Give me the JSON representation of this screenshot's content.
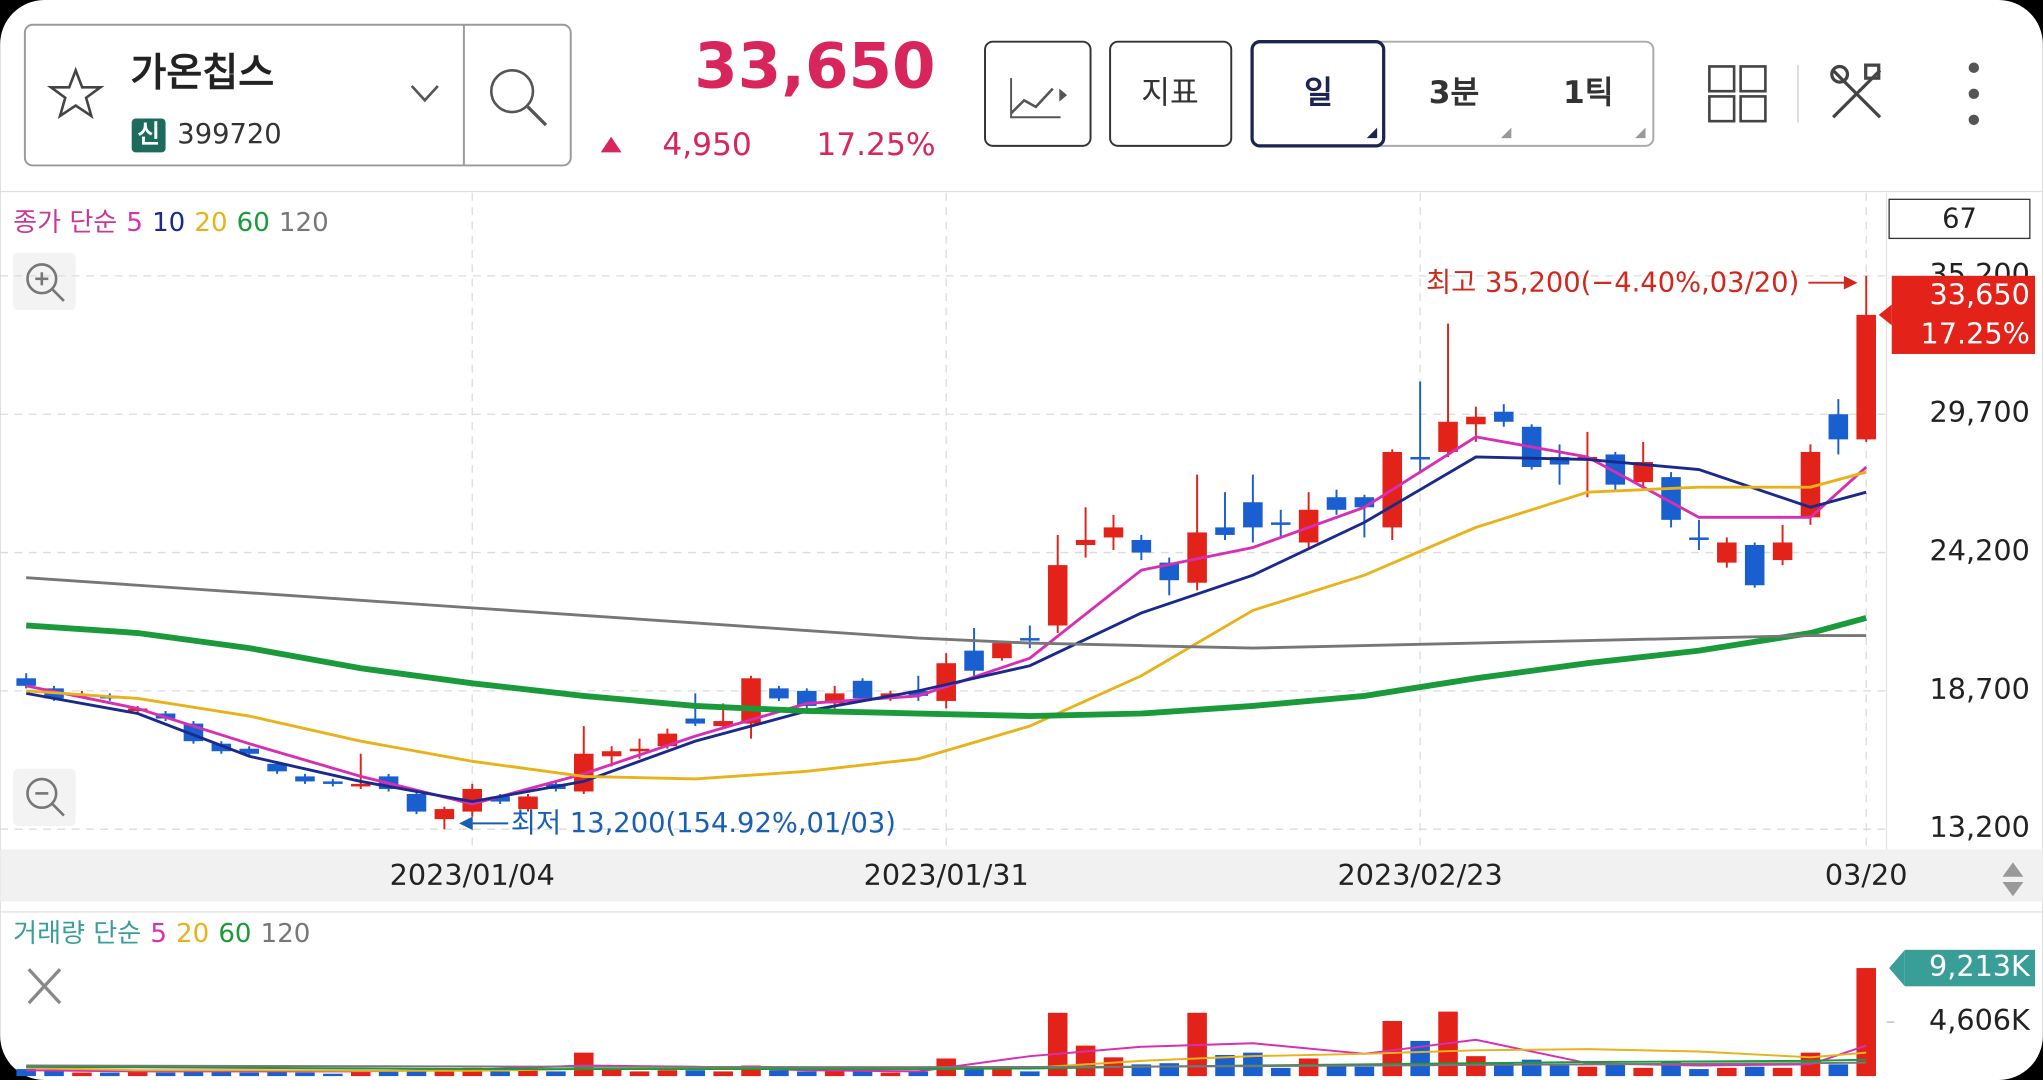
{
  "header": {
    "name": "가온칩스",
    "badge": "신",
    "code": "399720",
    "price": "33,650",
    "change": "4,950",
    "change_pct": "17.25%"
  },
  "toolbar": {
    "indicator": "지표",
    "periods": [
      "일",
      "3분",
      "1틱"
    ],
    "count": "67"
  },
  "chart_data": [
    {
      "type": "candlestick",
      "legend_title": "종가 단순",
      "categories": [
        null,
        null,
        null,
        null,
        null,
        null,
        null,
        null,
        null,
        null,
        null,
        null,
        null,
        null,
        null,
        null,
        "2023/01/04",
        null,
        null,
        null,
        null,
        null,
        null,
        null,
        null,
        null,
        null,
        null,
        null,
        null,
        null,
        null,
        null,
        "2023/01/31",
        null,
        null,
        null,
        null,
        null,
        null,
        null,
        null,
        null,
        null,
        null,
        null,
        null,
        null,
        null,
        null,
        "2023/02/23",
        null,
        null,
        null,
        null,
        null,
        null,
        null,
        null,
        null,
        null,
        null,
        null,
        null,
        null,
        null,
        "03/20"
      ],
      "open": [
        19200,
        18800,
        18500,
        18500,
        17900,
        17800,
        17400,
        16600,
        16400,
        15800,
        15300,
        15100,
        14900,
        15300,
        14600,
        13600,
        13900,
        14500,
        14000,
        15000,
        14700,
        16100,
        16300,
        16500,
        17600,
        17300,
        17400,
        18800,
        18700,
        18200,
        19100,
        18400,
        18700,
        18300,
        20300,
        20000,
        20800,
        21300,
        24500,
        24800,
        24700,
        23800,
        23000,
        25200,
        26200,
        25400,
        24600,
        26400,
        26400,
        25200,
        28000,
        28200,
        29300,
        29800,
        29200,
        28000,
        27900,
        28100,
        27000,
        27200,
        24800,
        23800,
        24500,
        23900,
        25600,
        29700,
        28700
      ],
      "high": [
        19400,
        18900,
        18700,
        18600,
        18100,
        17900,
        17500,
        16700,
        16500,
        15900,
        15400,
        15200,
        16200,
        15400,
        14700,
        14100,
        15000,
        14600,
        14600,
        15100,
        17300,
        16500,
        16800,
        17200,
        18600,
        18200,
        19300,
        18900,
        18800,
        18900,
        19200,
        18700,
        19300,
        20200,
        21200,
        20700,
        21300,
        24900,
        26000,
        25700,
        24900,
        24000,
        27300,
        26600,
        27300,
        25900,
        26600,
        26700,
        26500,
        28300,
        31000,
        33300,
        30000,
        30100,
        29300,
        28500,
        29000,
        28200,
        28600,
        27400,
        25500,
        24800,
        24600,
        25300,
        28500,
        30300,
        35200
      ],
      "low": [
        18800,
        18300,
        18400,
        18300,
        17800,
        17500,
        16600,
        16200,
        16100,
        15400,
        15000,
        14900,
        14800,
        14700,
        13800,
        13200,
        13700,
        14200,
        13900,
        14700,
        14600,
        15700,
        16000,
        16400,
        17300,
        17200,
        16800,
        18300,
        18000,
        18000,
        18300,
        18300,
        18300,
        18000,
        19300,
        19900,
        20400,
        21000,
        24000,
        24300,
        23900,
        22500,
        22700,
        24700,
        24600,
        24800,
        24400,
        25700,
        24800,
        24700,
        27400,
        28000,
        28600,
        29200,
        27500,
        26900,
        26400,
        26700,
        26700,
        25200,
        24300,
        23600,
        22800,
        23700,
        25300,
        28100,
        28600
      ],
      "close": [
        18900,
        18400,
        18550,
        18400,
        18000,
        17600,
        16700,
        16300,
        16200,
        15500,
        15100,
        15000,
        15000,
        14800,
        13900,
        14000,
        14800,
        14300,
        14500,
        14800,
        16200,
        16300,
        16400,
        17000,
        17400,
        17500,
        19200,
        18400,
        18100,
        18600,
        18400,
        18600,
        18500,
        19800,
        19500,
        20600,
        20700,
        23700,
        24700,
        25200,
        24200,
        23100,
        25000,
        24900,
        25200,
        25300,
        25900,
        25900,
        26000,
        28200,
        27900,
        29400,
        29600,
        29400,
        27600,
        27700,
        28000,
        26900,
        27800,
        25500,
        24700,
        24600,
        22900,
        24600,
        28200,
        28700,
        33650
      ],
      "up_color": "#e3221a",
      "down_color": "#1a5fd0",
      "ylim": [
        12500,
        38400
      ],
      "yticks": [
        {
          "value": 13200,
          "label": "13,200"
        },
        {
          "value": 18700,
          "label": "18,700"
        },
        {
          "value": 24200,
          "label": "24,200"
        },
        {
          "value": 29700,
          "label": "29,700"
        },
        {
          "value": 35200,
          "label": "35,200"
        }
      ],
      "grid": true,
      "moving_averages": [
        {
          "name": "5",
          "color": "#d62fb4",
          "x": [
            0,
            4,
            8,
            12,
            16,
            20,
            24,
            28,
            32,
            36,
            40,
            44,
            48,
            52,
            56,
            60,
            64,
            66
          ],
          "values": [
            18900,
            18000,
            16600,
            15300,
            14200,
            15400,
            16900,
            18200,
            18500,
            20000,
            23500,
            24400,
            26000,
            28800,
            28000,
            25600,
            25600,
            27600
          ]
        },
        {
          "name": "10",
          "color": "#1a2a8c",
          "x": [
            0,
            4,
            8,
            12,
            16,
            20,
            24,
            28,
            32,
            36,
            40,
            44,
            48,
            52,
            56,
            60,
            64,
            66
          ],
          "values": [
            18600,
            17800,
            16100,
            15100,
            14300,
            15100,
            16700,
            17900,
            18700,
            19700,
            21800,
            23300,
            25400,
            28000,
            27900,
            27500,
            26000,
            26600
          ]
        },
        {
          "name": "20",
          "color": "#e8b21a",
          "x": [
            0,
            4,
            8,
            12,
            16,
            20,
            24,
            28,
            32,
            36,
            40,
            44,
            48,
            52,
            56,
            60,
            64,
            66
          ],
          "values": [
            18700,
            18400,
            17700,
            16700,
            15900,
            15300,
            15200,
            15500,
            16000,
            17300,
            19300,
            21900,
            23300,
            25200,
            26600,
            26800,
            26800,
            27400
          ]
        },
        {
          "name": "60",
          "color": "#1a9a3a",
          "x": [
            0,
            4,
            8,
            12,
            16,
            20,
            24,
            28,
            32,
            36,
            40,
            44,
            48,
            52,
            56,
            60,
            64,
            66
          ],
          "values": [
            21300,
            21000,
            20400,
            19600,
            19000,
            18500,
            18100,
            17900,
            17800,
            17700,
            17800,
            18100,
            18500,
            19200,
            19800,
            20300,
            21000,
            21600
          ]
        },
        {
          "name": "120",
          "color": "#777777",
          "x": [
            0,
            4,
            8,
            12,
            16,
            20,
            24,
            28,
            32,
            36,
            40,
            44,
            48,
            52,
            56,
            60,
            64,
            66
          ],
          "values": [
            23200,
            22900,
            22600,
            22300,
            22000,
            21700,
            21400,
            21100,
            20800,
            20600,
            20500,
            20400,
            20500,
            20600,
            20700,
            20800,
            20900,
            20900
          ]
        }
      ],
      "high_label": "최고 35,200(−4.40%,03/20)",
      "low_label": "최저 13,200(154.92%,01/03)",
      "last_price": {
        "value": 33650,
        "label": "33,650"
      },
      "last_change": "17.25%"
    },
    {
      "type": "bar",
      "legend_title": "거래량 단순",
      "values": [
        600,
        500,
        300,
        300,
        400,
        300,
        500,
        400,
        300,
        400,
        300,
        200,
        500,
        400,
        500,
        600,
        700,
        400,
        500,
        400,
        2000,
        600,
        400,
        500,
        500,
        400,
        900,
        500,
        400,
        400,
        500,
        300,
        400,
        1500,
        700,
        600,
        400,
        5400,
        2600,
        1600,
        1000,
        1100,
        5400,
        1800,
        2000,
        700,
        1500,
        1000,
        800,
        4700,
        3000,
        5500,
        1700,
        1100,
        1400,
        900,
        800,
        1000,
        700,
        1200,
        600,
        700,
        800,
        700,
        2000,
        1000,
        9213
      ],
      "ylim": [
        0,
        10000
      ],
      "yticks": [
        {
          "value": 4606,
          "label": "4,606K"
        }
      ],
      "last_value": {
        "value": 9213,
        "label": "9,213K"
      },
      "moving_averages": [
        {
          "name": "5",
          "color": "#d62fb4",
          "x": [
            0,
            4,
            8,
            12,
            16,
            20,
            24,
            28,
            32,
            36,
            40,
            44,
            48,
            52,
            56,
            60,
            64,
            66
          ],
          "values": [
            500,
            400,
            400,
            400,
            550,
            900,
            800,
            500,
            400,
            1700,
            2500,
            2800,
            1900,
            3100,
            1100,
            900,
            1000,
            2600
          ]
        },
        {
          "name": "20",
          "color": "#e8b21a",
          "x": [
            0,
            4,
            8,
            12,
            16,
            20,
            24,
            28,
            32,
            36,
            40,
            44,
            48,
            52,
            56,
            60,
            64,
            66
          ],
          "values": [
            700,
            500,
            500,
            450,
            450,
            600,
            650,
            650,
            600,
            700,
            1300,
            1700,
            1900,
            2200,
            2300,
            2100,
            1600,
            2000
          ]
        },
        {
          "name": "60",
          "color": "#1a9a3a",
          "x": [
            0,
            4,
            8,
            12,
            16,
            20,
            24,
            28,
            32,
            36,
            40,
            44,
            48,
            52,
            56,
            60,
            64,
            66
          ],
          "values": [
            800,
            750,
            700,
            650,
            600,
            600,
            600,
            600,
            600,
            650,
            800,
            900,
            1000,
            1100,
            1200,
            1250,
            1300,
            1400
          ]
        },
        {
          "name": "120",
          "color": "#777777",
          "x": [
            0,
            4,
            8,
            12,
            16,
            20,
            24,
            28,
            32,
            36,
            40,
            44,
            48,
            52,
            56,
            60,
            64,
            66
          ],
          "values": [
            900,
            880,
            860,
            840,
            820,
            800,
            780,
            770,
            770,
            780,
            800,
            850,
            900,
            950,
            1000,
            1050,
            1100,
            1150
          ]
        }
      ]
    }
  ]
}
